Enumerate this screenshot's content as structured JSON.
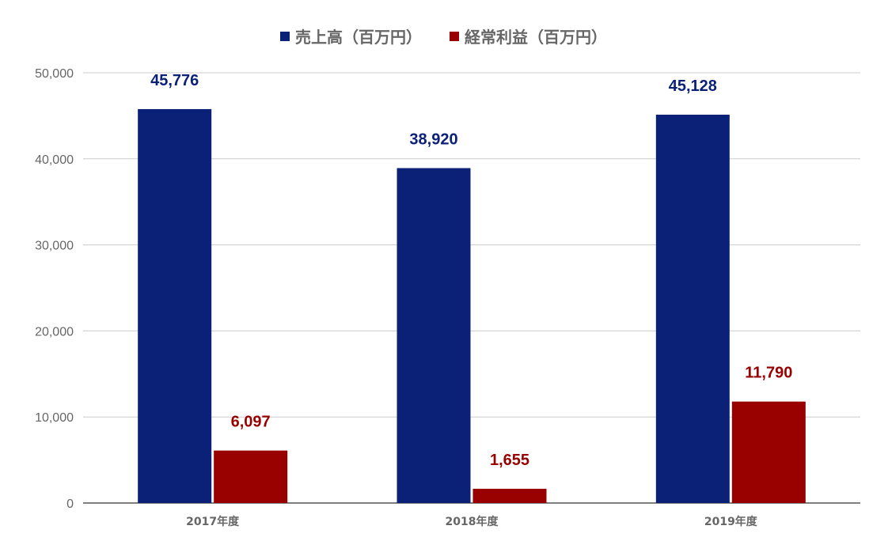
{
  "chart_data": {
    "type": "bar",
    "categories": [
      "2017年度",
      "2018年度",
      "2019年度"
    ],
    "series": [
      {
        "name": "売上高（百万円）",
        "color": "#0b2177",
        "values": [
          45776,
          38920,
          45128
        ],
        "labels": [
          "45,776",
          "38,920",
          "45,128"
        ]
      },
      {
        "name": "経常利益（百万円）",
        "color": "#990000",
        "values": [
          6097,
          1655,
          11790
        ],
        "labels": [
          "6,097",
          "1,655",
          "11,790"
        ]
      }
    ],
    "ylim": [
      0,
      50000
    ],
    "yticks": [
      0,
      10000,
      20000,
      30000,
      40000,
      50000
    ],
    "ytick_labels": [
      "0",
      "10,000",
      "20,000",
      "30,000",
      "40,000",
      "50,000"
    ],
    "grid": true,
    "legend_position": "top-center"
  }
}
